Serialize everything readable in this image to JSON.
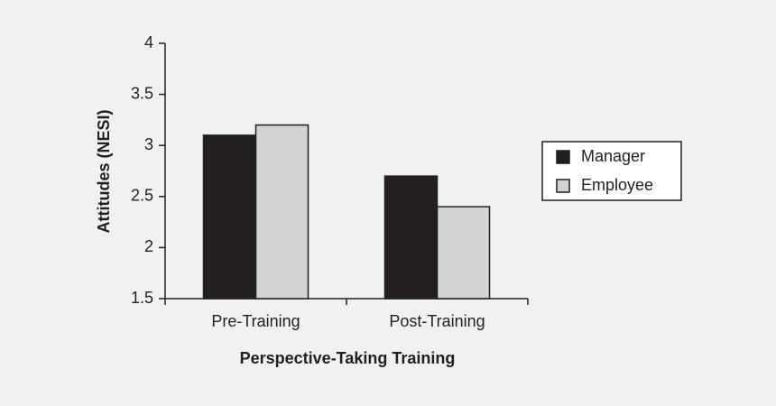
{
  "chart_data": {
    "type": "bar",
    "x_label": "Perspective-Taking Training",
    "y_label": "Attitudes (NESI)",
    "categories": [
      "Pre-Training",
      "Post-Training"
    ],
    "series": [
      {
        "name": "Manager",
        "color": "#231f20",
        "values": [
          3.1,
          2.7
        ]
      },
      {
        "name": "Employee",
        "color": "#d1d3d4",
        "values": [
          3.2,
          2.4
        ]
      }
    ],
    "ylim": [
      1.5,
      4
    ],
    "yticks": [
      1.5,
      2,
      2.5,
      3,
      3.5,
      4
    ],
    "grid": false,
    "legend": "right"
  }
}
